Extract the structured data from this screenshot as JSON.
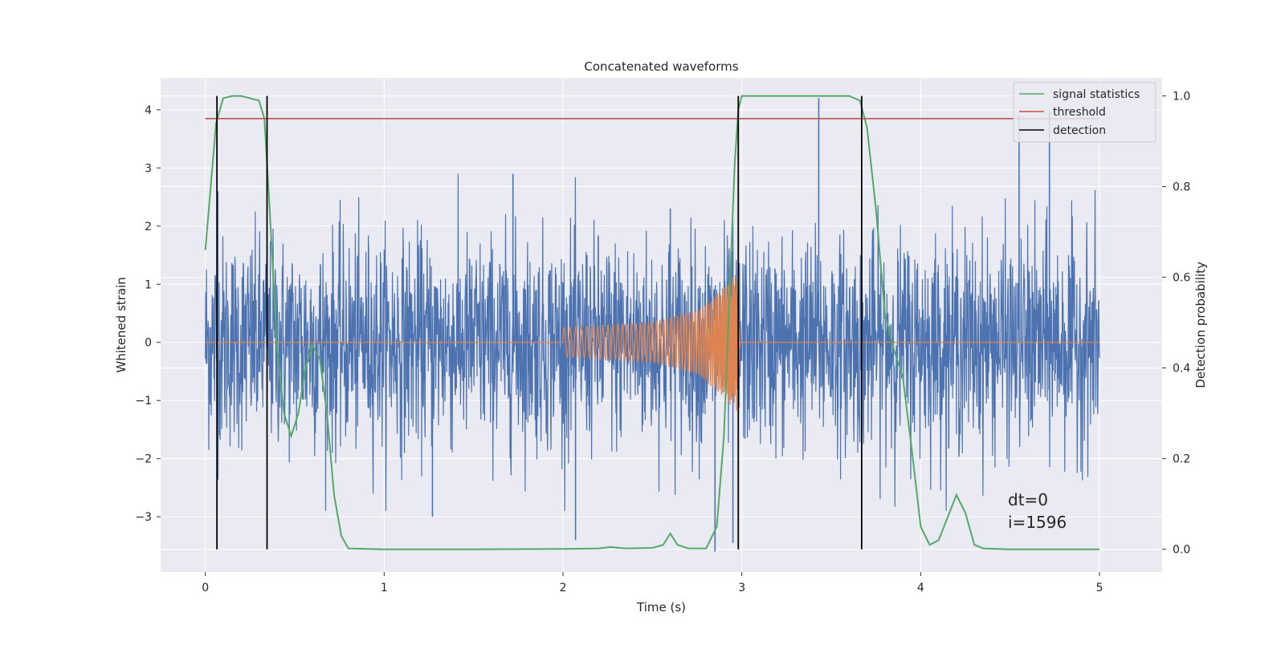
{
  "chart_data": {
    "type": "line",
    "title": "Concatenated waveforms",
    "xlabel": "Time (s)",
    "ylabel": "Whitened strain",
    "y2label": "Detection probability",
    "xlim": [
      -0.25,
      5.35
    ],
    "ylim": [
      -3.95,
      4.55
    ],
    "y2lim": [
      -0.05,
      1.04
    ],
    "xticks": [
      0,
      1,
      2,
      3,
      4,
      5
    ],
    "xtick_labels": [
      "0",
      "1",
      "2",
      "3",
      "4",
      "5"
    ],
    "yticks": [
      -3,
      -2,
      -1,
      0,
      1,
      2,
      3,
      4
    ],
    "ytick_labels": [
      "−3",
      "−2",
      "−1",
      "0",
      "1",
      "2",
      "3",
      "4"
    ],
    "y2ticks": [
      0.0,
      0.2,
      0.4,
      0.6,
      0.8,
      1.0
    ],
    "y2tick_labels": [
      "0.0",
      "0.2",
      "0.4",
      "0.6",
      "0.8",
      "1.0"
    ],
    "grid": true,
    "legend_position": "top-right",
    "colors": {
      "strain": "#4c72b0",
      "template": "#dd8452",
      "signal_statistics": "#55a868",
      "threshold": "#c44e52",
      "detection": "#000000",
      "axes_bg": "#eaeaf2",
      "grid": "#ffffff"
    },
    "series": [
      {
        "name": "",
        "axis": "left",
        "kind": "noise",
        "x_range": [
          0,
          5
        ],
        "sigma": 0.9,
        "peaks": [
          [
            0.07,
            2.6
          ],
          [
            1.72,
            2.9
          ],
          [
            2.6,
            2.3
          ],
          [
            3.43,
            4.2
          ],
          [
            4.55,
            3.9
          ],
          [
            4.72,
            4.0
          ],
          [
            2.85,
            -3.6
          ],
          [
            2.95,
            -3.45
          ],
          [
            2.07,
            -3.4
          ],
          [
            1.27,
            -3.0
          ]
        ]
      },
      {
        "name": "",
        "axis": "left",
        "kind": "chirp",
        "x": [
          0,
          2,
          2.5,
          2.75,
          2.9,
          2.97,
          2.99,
          5
        ],
        "amplitude": [
          0,
          0.25,
          0.35,
          0.55,
          0.95,
          1.2,
          0,
          0
        ]
      },
      {
        "name": "signal statistics",
        "axis": "right",
        "x": [
          0,
          0.03,
          0.06,
          0.1,
          0.15,
          0.2,
          0.3,
          0.33,
          0.36,
          0.4,
          0.44,
          0.48,
          0.52,
          0.56,
          0.6,
          0.64,
          0.68,
          0.72,
          0.76,
          0.8,
          1.0,
          1.5,
          2.0,
          2.2,
          2.27,
          2.35,
          2.5,
          2.56,
          2.6,
          2.64,
          2.7,
          2.8,
          2.86,
          2.9,
          2.93,
          2.96,
          2.98,
          3.0,
          3.05,
          3.6,
          3.66,
          3.7,
          3.75,
          3.8,
          3.85,
          3.9,
          3.95,
          4.0,
          4.05,
          4.1,
          4.15,
          4.2,
          4.25,
          4.3,
          4.35,
          4.5,
          5.0
        ],
        "values": [
          0.66,
          0.8,
          0.94,
          0.995,
          1.0,
          1.0,
          0.99,
          0.95,
          0.75,
          0.45,
          0.3,
          0.25,
          0.3,
          0.4,
          0.45,
          0.42,
          0.3,
          0.12,
          0.03,
          0.002,
          0.0,
          0.0,
          0.001,
          0.002,
          0.005,
          0.002,
          0.003,
          0.01,
          0.035,
          0.01,
          0.002,
          0.002,
          0.05,
          0.25,
          0.55,
          0.85,
          0.97,
          1.0,
          1.0,
          1.0,
          0.99,
          0.93,
          0.75,
          0.52,
          0.44,
          0.38,
          0.22,
          0.05,
          0.01,
          0.02,
          0.07,
          0.12,
          0.08,
          0.01,
          0.002,
          0.0,
          0.0
        ]
      },
      {
        "name": "threshold",
        "axis": "right",
        "x": [
          0,
          5
        ],
        "values": [
          0.95,
          0.95
        ]
      },
      {
        "name": "detection",
        "axis": "right",
        "kind": "vlines",
        "x": [
          0.065,
          0.345,
          2.98,
          3.67
        ],
        "range": [
          0,
          1.0
        ]
      }
    ],
    "annotations": [
      "dt=0",
      "i=1596"
    ]
  }
}
